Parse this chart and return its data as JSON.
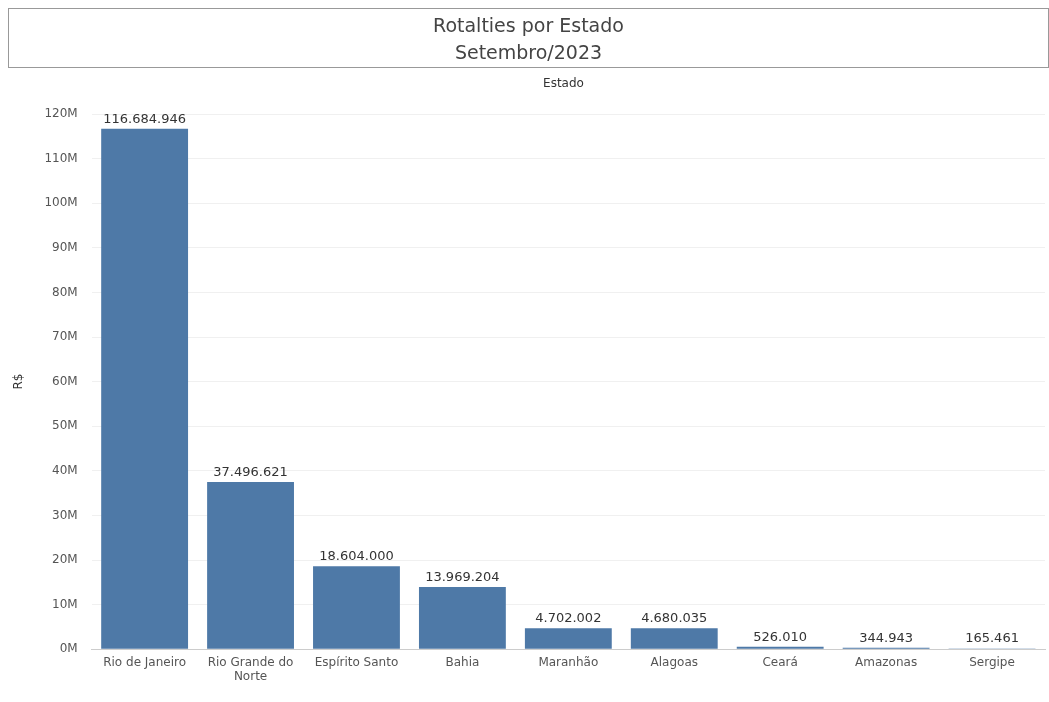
{
  "chart_data": {
    "type": "bar",
    "title": "Rotalties por Estado",
    "subtitle": "Setembro/2023",
    "xlabel": "Estado",
    "ylabel": "R$",
    "categories": [
      "Rio de Janeiro",
      "Rio Grande do Norte",
      "Espírito Santo",
      "Bahia",
      "Maranhão",
      "Alagoas",
      "Ceará",
      "Amazonas",
      "Sergipe"
    ],
    "values": [
      116684946,
      37496621,
      18604000,
      13969204,
      4702002,
      4680035,
      526010,
      344943,
      165461
    ],
    "value_labels": [
      "116.684.946",
      "37.496.621",
      "18.604.000",
      "13.969.204",
      "4.702.002",
      "4.680.035",
      "526.010",
      "344.943",
      "165.461"
    ],
    "color": "#4e79a7",
    "ylim": [
      0,
      120000000
    ],
    "yticks": [
      {
        "value": 0,
        "label": "0M"
      },
      {
        "value": 10000000,
        "label": "10M"
      },
      {
        "value": 20000000,
        "label": "20M"
      },
      {
        "value": 30000000,
        "label": "30M"
      },
      {
        "value": 40000000,
        "label": "40M"
      },
      {
        "value": 50000000,
        "label": "50M"
      },
      {
        "value": 60000000,
        "label": "60M"
      },
      {
        "value": 70000000,
        "label": "70M"
      },
      {
        "value": 80000000,
        "label": "80M"
      },
      {
        "value": 90000000,
        "label": "90M"
      },
      {
        "value": 100000000,
        "label": "100M"
      },
      {
        "value": 110000000,
        "label": "110M"
      },
      {
        "value": 120000000,
        "label": "120M"
      }
    ],
    "grid": "y",
    "legend": false
  }
}
